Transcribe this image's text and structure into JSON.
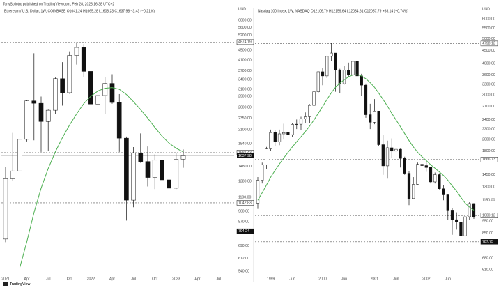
{
  "header": "TonySpilotro published on TradingView.com, Feb 28, 2023 16:38 UTC+2",
  "footer": "TradingView",
  "chart_data": [
    {
      "type": "candlestick",
      "title": "Ethereum / U.S. Dollar, 1W, COINBASE  O1641.24 H1665.28 L1608.23 C1637.98 −3.43 (−0.21%)",
      "currency": "USD",
      "categories": [
        "2021",
        null,
        null,
        "Apr",
        null,
        null,
        "Jul",
        null,
        null,
        "Oct",
        null,
        null,
        "2022",
        null,
        null,
        "Apr",
        null,
        null,
        "Jul",
        null,
        null,
        "Oct",
        null,
        null,
        "2023",
        null,
        null,
        "Apr",
        null,
        null,
        "Jul",
        null,
        null
      ],
      "open": [
        737,
        1314,
        1416,
        1918,
        2773,
        2710,
        2275,
        2535,
        3433,
        3000,
        4288,
        4630,
        3680,
        2690,
        2920,
        3280,
        2730,
        1940,
        1070,
        1680,
        1550,
        1330,
        1570,
        1300,
        1200,
        1585,
        null,
        null,
        null,
        null,
        null,
        null,
        null
      ],
      "high": [
        1470,
        2040,
        1950,
        2790,
        4380,
        2890,
        2550,
        3470,
        4020,
        4460,
        4874,
        4780,
        3900,
        3280,
        3480,
        3580,
        2960,
        1970,
        1780,
        2030,
        1790,
        1660,
        1680,
        1350,
        1680,
        1740,
        null,
        null,
        null,
        null,
        null,
        null,
        null
      ],
      "low": [
        715,
        1290,
        1360,
        1880,
        1900,
        1700,
        1718,
        2450,
        2650,
        2970,
        3930,
        3500,
        2160,
        2300,
        2440,
        2700,
        1700,
        880,
        1000,
        1530,
        1220,
        1190,
        1070,
        1150,
        1190,
        1460,
        null,
        null,
        null,
        null,
        null,
        null,
        null
      ],
      "close": [
        1314,
        1416,
        1918,
        2773,
        2710,
        2275,
        2535,
        3433,
        3000,
        4288,
        4630,
        3680,
        2690,
        2920,
        3280,
        2730,
        1940,
        1070,
        1680,
        1550,
        1330,
        1570,
        1300,
        1200,
        1585,
        1638,
        null,
        null,
        null,
        null,
        null,
        null,
        null
      ],
      "ma": [
        null,
        null,
        560,
        720,
        950,
        1200,
        1450,
        1700,
        1950,
        2200,
        2450,
        2700,
        2900,
        3050,
        3130,
        3150,
        3100,
        2950,
        2750,
        2550,
        2350,
        2150,
        1980,
        1850,
        1760,
        1700,
        null,
        null,
        null,
        null,
        null,
        null,
        null
      ],
      "ma_color": "#4caf50",
      "up_color": "#ffffff",
      "down_color": "#111111",
      "log_scale": true,
      "grid": false,
      "ylim": [
        520,
        6300
      ],
      "yticks": [
        {
          "value": 6000,
          "label": "6000.00"
        },
        {
          "value": 5600,
          "label": "5600.00"
        },
        {
          "value": 5200,
          "label": "5200.00"
        },
        {
          "value": 4500,
          "label": "4500.00"
        },
        {
          "value": 4100,
          "label": "4100.00"
        },
        {
          "value": 3700,
          "label": "3700.00"
        },
        {
          "value": 3400,
          "label": "3400.00"
        },
        {
          "value": 3100,
          "label": "3100.00"
        },
        {
          "value": 2900,
          "label": "2900.00"
        },
        {
          "value": 2600,
          "label": "2600.00"
        },
        {
          "value": 2350,
          "label": "2350.00"
        },
        {
          "value": 2100,
          "label": "2100.00"
        },
        {
          "value": 1840,
          "label": "1840.00"
        },
        {
          "value": 1480,
          "label": "1480.00"
        },
        {
          "value": 1280,
          "label": "1280.00"
        },
        {
          "value": 1100,
          "label": "1100.00"
        },
        {
          "value": 960,
          "label": "960.00"
        },
        {
          "value": 870,
          "label": "870.00"
        },
        {
          "value": 780,
          "label": "780.00"
        },
        {
          "value": 690,
          "label": "690.00"
        },
        {
          "value": 612,
          "label": "612.00"
        },
        {
          "value": 540,
          "label": "540.00"
        }
      ],
      "levels": [
        4874.19,
        1687.43,
        1042.83,
        794.24
      ],
      "last_price": 1637.98
    },
    {
      "type": "candlestick",
      "title": "Nasdaq 100 Index, 1W, NASDAQ  O12106.79 H12159.64 L12034.61 C12057.79 +88.14 (+0.74%)",
      "currency": "USD",
      "categories": [
        null,
        null,
        null,
        "1999",
        null,
        null,
        null,
        null,
        "Jun",
        null,
        null,
        null,
        null,
        null,
        null,
        "2000",
        null,
        null,
        null,
        null,
        "Jun",
        null,
        null,
        null,
        null,
        null,
        null,
        "2001",
        null,
        null,
        null,
        null,
        "Jun",
        null,
        null,
        null,
        null,
        null,
        null,
        "2002",
        null,
        null,
        null,
        null,
        "Jun",
        null,
        null,
        null,
        null,
        null,
        null
      ],
      "open": [
        1120,
        1380,
        1590,
        1836,
        2130,
        1960,
        2106,
        2130,
        2090,
        2296,
        2300,
        2410,
        2460,
        2730,
        3090,
        3708,
        3570,
        4266,
        4398,
        3773,
        3324,
        3763,
        3609,
        4077,
        3570,
        3282,
        2507,
        2341,
        2593,
        1908,
        1573,
        1855,
        1799,
        1830,
        1684,
        1470,
        1168,
        1329,
        1596,
        1577,
        1550,
        1359,
        1452,
        1277,
        1208,
        1051,
        963,
        942,
        832,
        989,
        1116
      ],
      "high": [
        1420,
        1620,
        1870,
        2190,
        2180,
        2190,
        2310,
        2200,
        2330,
        2400,
        2460,
        2560,
        2760,
        3120,
        3720,
        3840,
        4290,
        4816,
        4400,
        3810,
        3920,
        4030,
        4110,
        4100,
        3640,
        3330,
        2770,
        2890,
        2590,
        2080,
        1980,
        2020,
        1920,
        1840,
        1710,
        1500,
        1420,
        1620,
        1690,
        1630,
        1560,
        1480,
        1470,
        1320,
        1210,
        1070,
        1030,
        960,
        1050,
        1130,
        1120
      ],
      "low": [
        1063,
        1340,
        1530,
        1800,
        1880,
        1900,
        2000,
        1960,
        2040,
        2200,
        2180,
        2330,
        2330,
        2700,
        3050,
        3280,
        3500,
        4090,
        3090,
        3050,
        3300,
        3530,
        3580,
        3510,
        2970,
        2440,
        2200,
        2300,
        1880,
        1450,
        1400,
        1690,
        1670,
        1550,
        1450,
        1100,
        1160,
        1320,
        1510,
        1490,
        1340,
        1340,
        1270,
        1150,
        960,
        840,
        880,
        830,
        795,
        960,
        970
      ],
      "close": [
        1380,
        1590,
        1836,
        2130,
        1960,
        2106,
        2130,
        2090,
        2296,
        2300,
        2410,
        2460,
        2730,
        3090,
        3708,
        3570,
        4266,
        4398,
        3773,
        3324,
        3763,
        3609,
        4077,
        3570,
        3282,
        2507,
        2341,
        2593,
        1908,
        1573,
        1855,
        1799,
        1830,
        1684,
        1470,
        1168,
        1329,
        1596,
        1577,
        1550,
        1359,
        1452,
        1277,
        1208,
        1051,
        963,
        942,
        832,
        989,
        1116,
        984
      ],
      "ma": [
        1150,
        1230,
        1320,
        1420,
        1510,
        1600,
        1690,
        1780,
        1870,
        1960,
        2050,
        2150,
        2260,
        2390,
        2540,
        2700,
        2880,
        3060,
        3220,
        3340,
        3450,
        3540,
        3600,
        3610,
        3570,
        3480,
        3360,
        3220,
        3050,
        2880,
        2710,
        2540,
        2390,
        2250,
        2110,
        1980,
        1870,
        1780,
        1710,
        1650,
        1590,
        1540,
        1490,
        1440,
        1380,
        1310,
        1250,
        1180,
        1120,
        1080,
        1050
      ],
      "ma_color": "#4caf50",
      "up_color": "#ffffff",
      "down_color": "#111111",
      "log_scale": true,
      "grid": false,
      "ylim": [
        580,
        6200
      ],
      "yticks": [
        {
          "value": 6000,
          "label": "6000.00"
        },
        {
          "value": 5500,
          "label": "5500.00"
        },
        {
          "value": 5000,
          "label": "5000.00"
        },
        {
          "value": 4500,
          "label": "4500.00"
        },
        {
          "value": 4000,
          "label": "4000.00"
        },
        {
          "value": 3600,
          "label": "3600.00"
        },
        {
          "value": 3300,
          "label": "3300.00"
        },
        {
          "value": 3000,
          "label": "3000.00"
        },
        {
          "value": 2700,
          "label": "2700.00"
        },
        {
          "value": 2400,
          "label": "2400.00"
        },
        {
          "value": 2200,
          "label": "2200.00"
        },
        {
          "value": 2000,
          "label": "2000.00"
        },
        {
          "value": 1800,
          "label": "1800.00"
        },
        {
          "value": 1450,
          "label": "1450.00"
        },
        {
          "value": 1300,
          "label": "1300.00"
        },
        {
          "value": 1150,
          "label": "1150.00"
        },
        {
          "value": 950,
          "label": "950.00"
        },
        {
          "value": 850,
          "label": "850.00"
        },
        {
          "value": 680,
          "label": "680.00"
        },
        {
          "value": 610,
          "label": "610.00"
        }
      ],
      "levels": [
        4798.12,
        1666.73,
        1000.12,
        787.75
      ]
    }
  ]
}
